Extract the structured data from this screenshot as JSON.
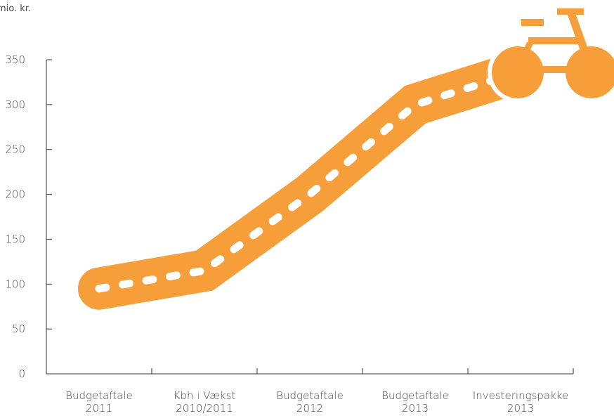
{
  "chart_data": {
    "type": "line",
    "title": "",
    "ylabel": "",
    "y_unit_label": "mio. kr.",
    "xlabel": "",
    "categories": [
      [
        "Budgetaftale",
        "2011"
      ],
      [
        "Kbh i Vækst",
        "2010/2011"
      ],
      [
        "Budgetaftale",
        "2012"
      ],
      [
        "Budgetaftale",
        "2013"
      ],
      [
        "Investeringspakke",
        "2013"
      ]
    ],
    "series": [
      {
        "values": [
          95,
          115,
          200,
          300,
          337
        ]
      }
    ],
    "ylim": [
      0,
      350
    ],
    "yticks": [
      0,
      50,
      100,
      150,
      200,
      250,
      300,
      350
    ],
    "grid": false,
    "legend": "none",
    "line_color": "#F69E3A",
    "dash_color": "#ffffff",
    "end_marker_icon": "bicycle-icon"
  }
}
